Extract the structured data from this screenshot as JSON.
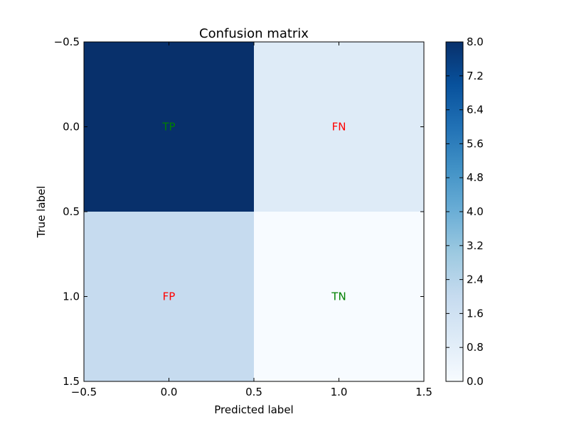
{
  "chart_data": {
    "type": "heatmap",
    "title": "Confusion matrix",
    "xlabel": "Predicted label",
    "ylabel": "True label",
    "xlim": [
      -0.5,
      1.5
    ],
    "ylim": [
      1.5,
      -0.5
    ],
    "x_ticks": [
      "−0.5",
      "0.0",
      "0.5",
      "1.0",
      "1.5"
    ],
    "y_ticks": [
      "−0.5",
      "0.0",
      "0.5",
      "1.0",
      "1.5"
    ],
    "matrix": [
      [
        8,
        1
      ],
      [
        2,
        0
      ]
    ],
    "cell_labels": [
      [
        "TP",
        "FN"
      ],
      [
        "FP",
        "TN"
      ]
    ],
    "cell_label_colors": [
      [
        "#008000",
        "#ff0000"
      ],
      [
        "#ff0000",
        "#008000"
      ]
    ],
    "colormap": "Blues",
    "colorbar": {
      "min": 0,
      "max": 8,
      "ticks": [
        "0.0",
        "0.8",
        "1.6",
        "2.4",
        "3.2",
        "4.0",
        "4.8",
        "5.6",
        "6.4",
        "7.2",
        "8.0"
      ]
    }
  }
}
